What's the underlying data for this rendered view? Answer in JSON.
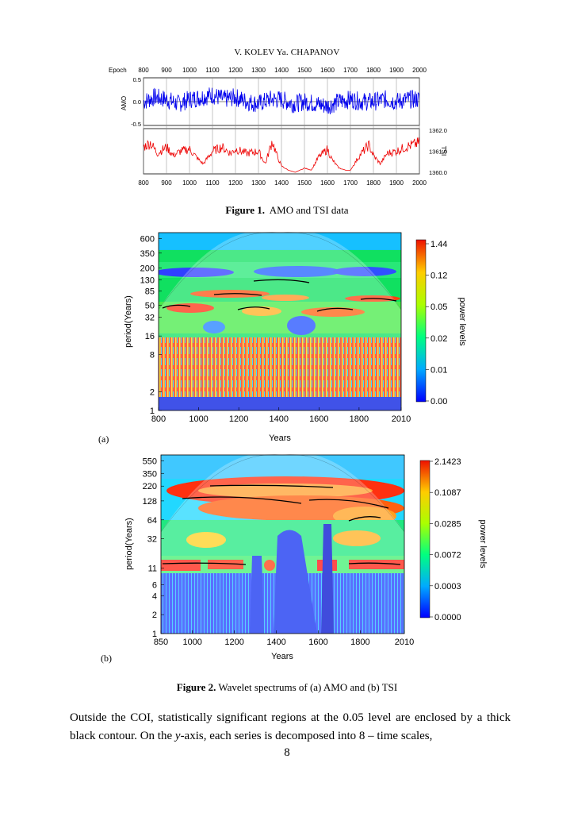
{
  "header": {
    "running_title": "V. KOLEV  Ya. CHAPANOV"
  },
  "figure1": {
    "caption_label": "Figure 1.",
    "caption_text": "AMO and TSI data",
    "chart_data": [
      {
        "type": "line",
        "title": "",
        "xlabel": "Epoch",
        "ylabel": "AMO",
        "x_ticks": [
          "800",
          "900",
          "1000",
          "1100",
          "1200",
          "1300",
          "1400",
          "1500",
          "1600",
          "1700",
          "1800",
          "1900",
          "2000"
        ],
        "y_ticks": [
          "0.5",
          "0.0",
          "-0.5"
        ],
        "xlim": [
          800,
          2000
        ],
        "ylim": [
          -0.5,
          0.5
        ],
        "series": [
          {
            "name": "AMO",
            "color": "#0000ee",
            "x": [
              800,
              850,
              900,
              950,
              1000,
              1050,
              1100,
              1150,
              1200,
              1250,
              1300,
              1350,
              1400,
              1450,
              1500,
              1550,
              1600,
              1650,
              1700,
              1750,
              1800,
              1850,
              1900,
              1950,
              2000
            ],
            "values": [
              0.0,
              0.1,
              0.05,
              -0.05,
              0.05,
              0.1,
              0.15,
              0.05,
              0.1,
              0.0,
              -0.05,
              0.05,
              0.05,
              -0.05,
              0.0,
              -0.05,
              -0.1,
              0.0,
              0.05,
              0.0,
              0.0,
              0.05,
              0.0,
              0.05,
              0.05
            ]
          }
        ]
      },
      {
        "type": "line",
        "title": "",
        "xlabel": "",
        "ylabel": "TSI",
        "x_ticks": [
          "800",
          "900",
          "1000",
          "1100",
          "1200",
          "1300",
          "1400",
          "1500",
          "1600",
          "1700",
          "1800",
          "1900",
          "2000"
        ],
        "y_ticks": [
          "1362.0",
          "1361.0",
          "1360.0"
        ],
        "xlim": [
          800,
          2000
        ],
        "ylim": [
          1360.0,
          1362.0
        ],
        "series": [
          {
            "name": "TSI",
            "color": "#ee0000",
            "x": [
              800,
              830,
              860,
              900,
              930,
              960,
              1000,
              1040,
              1060,
              1100,
              1140,
              1180,
              1200,
              1250,
              1300,
              1330,
              1360,
              1380,
              1400,
              1430,
              1460,
              1500,
              1530,
              1560,
              1600,
              1620,
              1650,
              1680,
              1700,
              1740,
              1780,
              1800,
              1830,
              1860,
              1900,
              1940,
              1970,
              2000
            ],
            "values": [
              1361.2,
              1361.4,
              1360.9,
              1361.2,
              1360.8,
              1361.0,
              1361.1,
              1360.6,
              1360.4,
              1361.0,
              1361.2,
              1360.9,
              1361.1,
              1360.9,
              1361.0,
              1360.4,
              1361.5,
              1360.8,
              1360.3,
              1360.1,
              1360.0,
              1360.2,
              1360.1,
              1360.7,
              1361.1,
              1360.6,
              1360.2,
              1360.1,
              1360.1,
              1360.8,
              1361.3,
              1360.8,
              1360.4,
              1360.9,
              1361.0,
              1361.2,
              1361.3,
              1361.4
            ]
          }
        ]
      }
    ]
  },
  "figure2a": {
    "label": "(a)",
    "chart_data": {
      "type": "heatmap",
      "title": "",
      "xlabel": "Years",
      "ylabel": "period(Years)",
      "colorbar_label": "power levels",
      "x_ticks": [
        "800",
        "1000",
        "1200",
        "1400",
        "1600",
        "1800",
        "2010"
      ],
      "y_ticks": [
        "600",
        "350",
        "200",
        "130",
        "85",
        "50",
        "32",
        "16",
        "8",
        "2",
        "1"
      ],
      "colorbar_ticks": [
        "1.44",
        "0.12",
        "0.05",
        "0.02",
        "0.01",
        "0.00"
      ],
      "xlim": [
        800,
        2010
      ]
    }
  },
  "figure2b": {
    "label": "(b)",
    "chart_data": {
      "type": "heatmap",
      "title": "",
      "xlabel": "Years",
      "ylabel": "period(Years)",
      "colorbar_label": "power levels",
      "x_ticks": [
        "850",
        "1000",
        "1200",
        "1400",
        "1600",
        "1800",
        "2010"
      ],
      "y_ticks": [
        "550",
        "350",
        "220",
        "128",
        "64",
        "32",
        "11",
        "6",
        "4",
        "2",
        "1"
      ],
      "colorbar_ticks": [
        "2.1423",
        "0.1087",
        "0.0285",
        "0.0072",
        "0.0003",
        "0.0000"
      ],
      "xlim": [
        850,
        2010
      ]
    }
  },
  "figure2": {
    "caption_label": "Figure 2.",
    "caption_text": "Wavelet spectrums of (a) AMO and (b) TSI"
  },
  "body": {
    "para_part1": "Outside the COI, statistically significant regions at the 0.05 level are enclosed by a thick black contour. On the ",
    "para_italic": "y",
    "para_part2": "-axis, each series is decomposed into 8 – time scales,"
  },
  "page": {
    "number": "8"
  }
}
